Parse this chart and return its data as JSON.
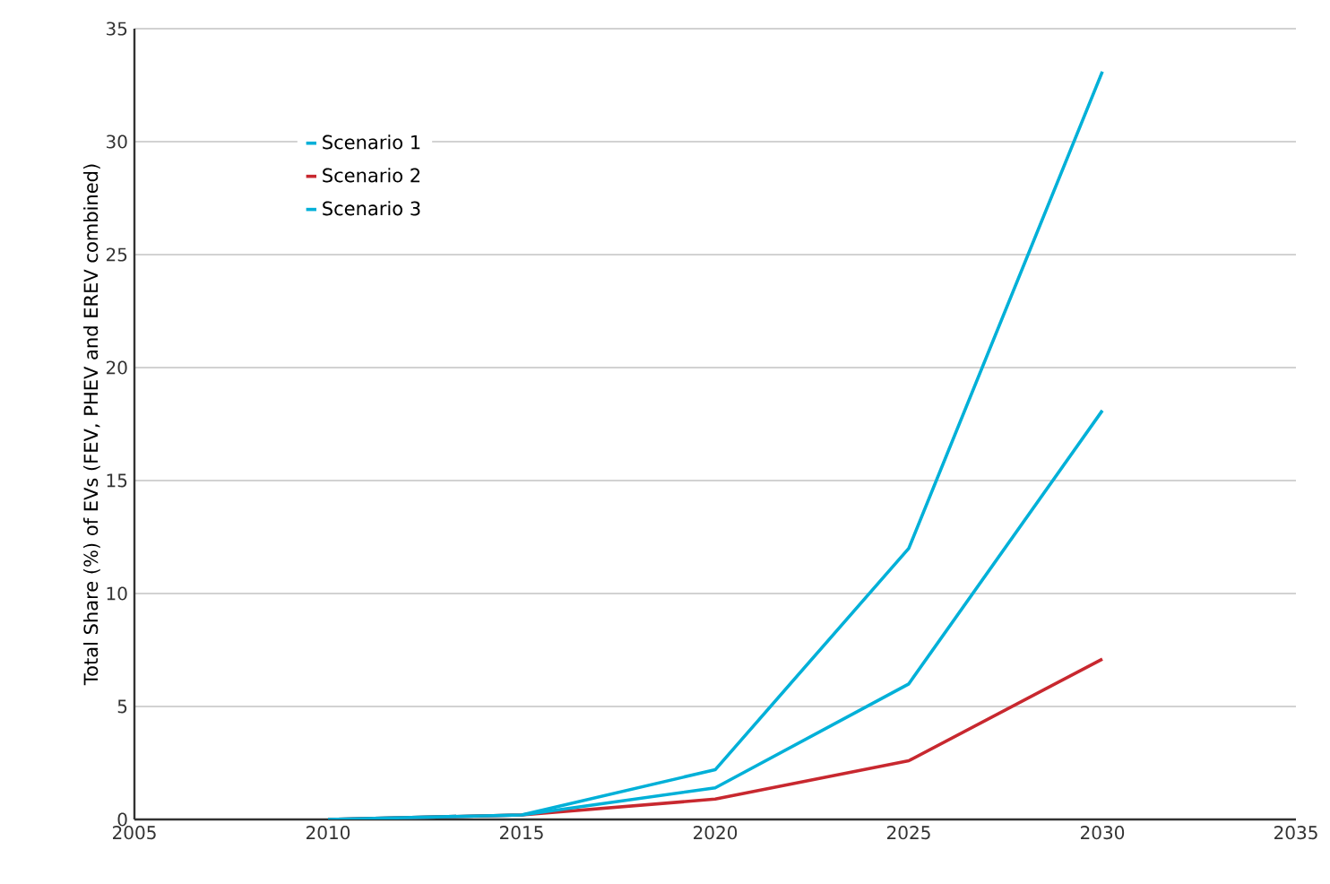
{
  "chart_data": {
    "type": "line",
    "ylabel": "Total Share (%) of EVs (FEV, PHEV and EREV combined)",
    "x": [
      2010,
      2015,
      2020,
      2025,
      2030
    ],
    "series": [
      {
        "name": "Scenario 1",
        "color": "#00b0d8",
        "values": [
          0,
          0.2,
          2.2,
          12,
          33.1
        ]
      },
      {
        "name": "Scenario 2",
        "color": "#c8282f",
        "values": [
          0,
          0.2,
          0.9,
          2.6,
          7.1
        ]
      },
      {
        "name": "Scenario 3",
        "color": "#00b0d8",
        "values": [
          0,
          0.2,
          1.4,
          6,
          18.1
        ]
      }
    ],
    "xlim": [
      2005,
      2035
    ],
    "xticks": [
      2005,
      2010,
      2015,
      2020,
      2025,
      2030,
      2035
    ],
    "ylim": [
      0,
      35
    ],
    "yticks": [
      0,
      5,
      10,
      15,
      20,
      25,
      30,
      35
    ],
    "grid": "y",
    "legend": "top left",
    "marker": "none",
    "line_style": "solid"
  }
}
